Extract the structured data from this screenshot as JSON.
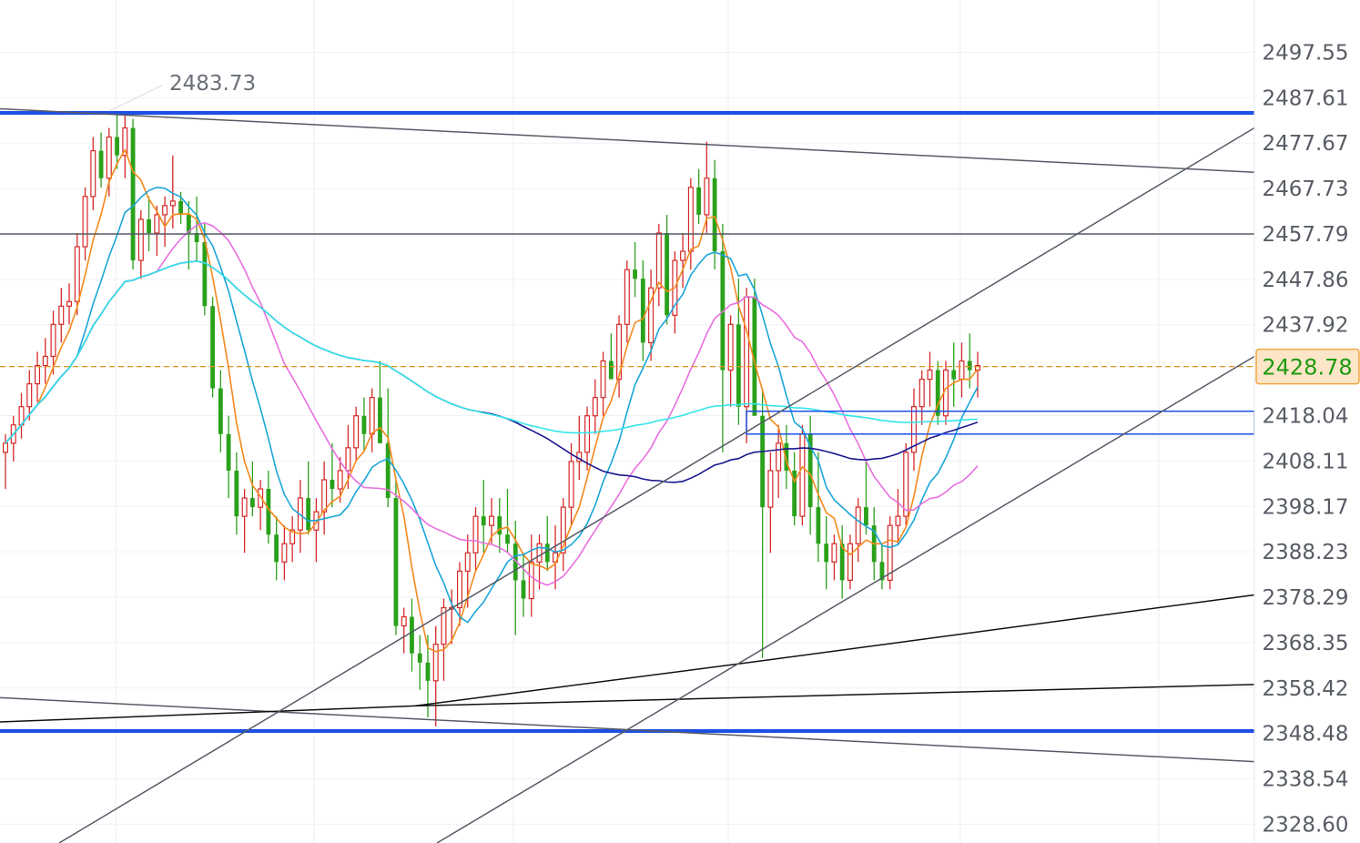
{
  "chart_data": {
    "type": "candlestick",
    "ylim": [
      2324.5,
      2509.0
    ],
    "y_ticks": [
      "2328.60",
      "2338.54",
      "2348.48",
      "2358.42",
      "2368.35",
      "2378.29",
      "2388.23",
      "2398.17",
      "2408.11",
      "2418.04",
      "2428.78",
      "2437.92",
      "2447.86",
      "2457.79",
      "2467.73",
      "2477.67",
      "2487.61",
      "2497.55"
    ],
    "current_price": "2428.78",
    "peak_label": "2483.73",
    "candles": [
      [
        2410,
        2414,
        2402,
        2412
      ],
      [
        2412,
        2418,
        2408,
        2416
      ],
      [
        2416,
        2423,
        2413,
        2420
      ],
      [
        2420,
        2428,
        2417,
        2425
      ],
      [
        2425,
        2432,
        2421,
        2429
      ],
      [
        2429,
        2435,
        2425,
        2431
      ],
      [
        2431,
        2441,
        2427,
        2438
      ],
      [
        2438,
        2446,
        2434,
        2442
      ],
      [
        2442,
        2447,
        2438,
        2443
      ],
      [
        2443,
        2458,
        2440,
        2455
      ],
      [
        2455,
        2468,
        2452,
        2466
      ],
      [
        2466,
        2479,
        2463,
        2476
      ],
      [
        2476,
        2480,
        2468,
        2470
      ],
      [
        2470,
        2481,
        2466,
        2479
      ],
      [
        2479,
        2484,
        2472,
        2475
      ],
      [
        2475,
        2484,
        2470,
        2481
      ],
      [
        2481,
        2483,
        2450,
        2452
      ],
      [
        2452,
        2463,
        2448,
        2461
      ],
      [
        2461,
        2466,
        2454,
        2458
      ],
      [
        2458,
        2464,
        2453,
        2462
      ],
      [
        2462,
        2466,
        2455,
        2464
      ],
      [
        2464,
        2475,
        2459,
        2465
      ],
      [
        2465,
        2467,
        2460,
        2462
      ],
      [
        2462,
        2465,
        2450,
        2458
      ],
      [
        2458,
        2466,
        2452,
        2456
      ],
      [
        2456,
        2460,
        2440,
        2442
      ],
      [
        2442,
        2444,
        2422,
        2424
      ],
      [
        2424,
        2428,
        2410,
        2414
      ],
      [
        2414,
        2418,
        2400,
        2406
      ],
      [
        2406,
        2410,
        2392,
        2396
      ],
      [
        2396,
        2402,
        2388,
        2400
      ],
      [
        2400,
        2408,
        2396,
        2398
      ],
      [
        2398,
        2404,
        2393,
        2402
      ],
      [
        2402,
        2406,
        2390,
        2392
      ],
      [
        2392,
        2396,
        2382,
        2386
      ],
      [
        2386,
        2394,
        2382,
        2390
      ],
      [
        2390,
        2396,
        2386,
        2393
      ],
      [
        2393,
        2404,
        2388,
        2400
      ],
      [
        2400,
        2408,
        2392,
        2393
      ],
      [
        2393,
        2400,
        2386,
        2397
      ],
      [
        2397,
        2408,
        2392,
        2404
      ],
      [
        2404,
        2412,
        2398,
        2402
      ],
      [
        2402,
        2409,
        2399,
        2406
      ],
      [
        2406,
        2416,
        2402,
        2411
      ],
      [
        2411,
        2420,
        2408,
        2418
      ],
      [
        2418,
        2422,
        2410,
        2414
      ],
      [
        2414,
        2424,
        2410,
        2422
      ],
      [
        2422,
        2430,
        2412,
        2412
      ],
      [
        2412,
        2424,
        2398,
        2400
      ],
      [
        2400,
        2404,
        2370,
        2372
      ],
      [
        2372,
        2376,
        2366,
        2374
      ],
      [
        2374,
        2378,
        2362,
        2366
      ],
      [
        2366,
        2370,
        2358,
        2364
      ],
      [
        2364,
        2370,
        2352,
        2360
      ],
      [
        2360,
        2372,
        2350,
        2368
      ],
      [
        2368,
        2378,
        2360,
        2376
      ],
      [
        2376,
        2380,
        2368,
        2376
      ],
      [
        2376,
        2386,
        2372,
        2384
      ],
      [
        2384,
        2392,
        2376,
        2388
      ],
      [
        2388,
        2398,
        2384,
        2396
      ],
      [
        2396,
        2404,
        2388,
        2394
      ],
      [
        2394,
        2400,
        2390,
        2396
      ],
      [
        2396,
        2400,
        2388,
        2392
      ],
      [
        2392,
        2402,
        2388,
        2390
      ],
      [
        2390,
        2395,
        2370,
        2382
      ],
      [
        2382,
        2388,
        2374,
        2378
      ],
      [
        2378,
        2392,
        2374,
        2386
      ],
      [
        2386,
        2392,
        2380,
        2390
      ],
      [
        2390,
        2396,
        2384,
        2386
      ],
      [
        2386,
        2394,
        2380,
        2388
      ],
      [
        2388,
        2400,
        2384,
        2398
      ],
      [
        2398,
        2412,
        2394,
        2408
      ],
      [
        2408,
        2418,
        2404,
        2410
      ],
      [
        2410,
        2420,
        2406,
        2418
      ],
      [
        2418,
        2426,
        2414,
        2422
      ],
      [
        2422,
        2432,
        2418,
        2430
      ],
      [
        2430,
        2436,
        2426,
        2426
      ],
      [
        2426,
        2440,
        2422,
        2438
      ],
      [
        2438,
        2452,
        2434,
        2450
      ],
      [
        2450,
        2456,
        2444,
        2448
      ],
      [
        2448,
        2452,
        2430,
        2434
      ],
      [
        2434,
        2450,
        2430,
        2446
      ],
      [
        2446,
        2460,
        2442,
        2458
      ],
      [
        2458,
        2462,
        2438,
        2440
      ],
      [
        2440,
        2454,
        2436,
        2452
      ],
      [
        2452,
        2458,
        2446,
        2454
      ],
      [
        2454,
        2470,
        2450,
        2468
      ],
      [
        2468,
        2472,
        2460,
        2462
      ],
      [
        2462,
        2478,
        2458,
        2470
      ],
      [
        2470,
        2474,
        2450,
        2454
      ],
      [
        2454,
        2460,
        2410,
        2428
      ],
      [
        2428,
        2440,
        2420,
        2438
      ],
      [
        2438,
        2448,
        2416,
        2420
      ],
      [
        2420,
        2446,
        2412,
        2444
      ],
      [
        2444,
        2448,
        2418,
        2418
      ],
      [
        2418,
        2424,
        2365,
        2398
      ],
      [
        2398,
        2410,
        2388,
        2406
      ],
      [
        2406,
        2416,
        2400,
        2412
      ],
      [
        2412,
        2416,
        2402,
        2406
      ],
      [
        2406,
        2410,
        2394,
        2396
      ],
      [
        2396,
        2416,
        2394,
        2414
      ],
      [
        2414,
        2418,
        2392,
        2398
      ],
      [
        2398,
        2410,
        2386,
        2390
      ],
      [
        2390,
        2396,
        2380,
        2386
      ],
      [
        2386,
        2392,
        2382,
        2390
      ],
      [
        2390,
        2394,
        2378,
        2382
      ],
      [
        2382,
        2392,
        2380,
        2390
      ],
      [
        2390,
        2400,
        2386,
        2398
      ],
      [
        2398,
        2408,
        2392,
        2394
      ],
      [
        2394,
        2398,
        2382,
        2386
      ],
      [
        2386,
        2390,
        2380,
        2382
      ],
      [
        2382,
        2396,
        2380,
        2394
      ],
      [
        2394,
        2402,
        2390,
        2396
      ],
      [
        2396,
        2412,
        2394,
        2410
      ],
      [
        2410,
        2424,
        2406,
        2420
      ],
      [
        2420,
        2428,
        2416,
        2426
      ],
      [
        2426,
        2432,
        2420,
        2428
      ],
      [
        2428,
        2430,
        2416,
        2418
      ],
      [
        2418,
        2430,
        2416,
        2428
      ],
      [
        2428,
        2434,
        2420,
        2426
      ],
      [
        2426,
        2434,
        2422,
        2430
      ],
      [
        2430,
        2436,
        2424,
        2428
      ],
      [
        2428,
        2432,
        2422,
        2429
      ]
    ],
    "moving_averages": [
      {
        "color": "#f5891c",
        "period": 5
      },
      {
        "color": "#1aa6d8",
        "period": 10
      },
      {
        "color": "#e96fe0",
        "period": 20
      },
      {
        "color": "#1c178f",
        "period": 60
      },
      {
        "color": "#34e6ea",
        "period": 120
      }
    ],
    "horizontal_levels": [
      {
        "price": 2484.3,
        "color": "#1c4fe6",
        "width": 4
      },
      {
        "price": 2349.0,
        "color": "#1c4fe6",
        "width": 4
      },
      {
        "price": 2457.8,
        "color": "#555b66",
        "width": 1.5
      },
      {
        "price": 2428.78,
        "color": "#e3941a",
        "width": 1.2,
        "dashed": true
      }
    ],
    "trend_lines": [
      {
        "from": [
          0,
          2485.2
        ],
        "to": [
          1378,
          2471.3
        ],
        "color": "#555b66"
      },
      {
        "from": [
          0,
          2356.3
        ],
        "to": [
          1378,
          2342.3
        ],
        "color": "#555b66"
      },
      {
        "from": [
          0,
          2351.0
        ],
        "to": [
          456,
          2354.5
        ],
        "color": "#111111"
      },
      {
        "from": [
          456,
          2354.5
        ],
        "to": [
          830,
          2364.2
        ],
        "color": "#111111"
      },
      {
        "from": [
          830,
          2364.2
        ],
        "to": [
          1378,
          2378.8
        ],
        "color": "#111111"
      },
      {
        "from": [
          456,
          2354.5
        ],
        "to": [
          1378,
          2359.2
        ],
        "color": "#111111"
      },
      {
        "from": [
          65,
          2324.5
        ],
        "to": [
          1378,
          2481.0
        ],
        "color": "#555b66"
      },
      {
        "from": [
          480,
          2324.5
        ],
        "to": [
          1378,
          2431.0
        ],
        "color": "#555b66"
      }
    ],
    "zone": {
      "x1": 820,
      "x2": 1378,
      "top": 2419.0,
      "bottom": 2414.0,
      "color": "#1c4fe6"
    }
  }
}
